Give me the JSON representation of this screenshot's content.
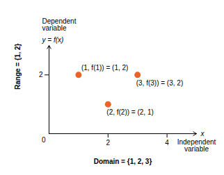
{
  "chart_data": {
    "type": "scatter",
    "x": [
      1,
      2,
      3
    ],
    "values": [
      2,
      1,
      2
    ],
    "color": "#E8622A",
    "xlim": [
      0,
      5.0
    ],
    "ylim": [
      0,
      3.0
    ],
    "xticks": [
      2,
      4
    ],
    "yticks": [
      2
    ],
    "xlabel": "x",
    "xlabel_note": "Independent\nvariable",
    "ylabel": "y = f(x)",
    "ylabel_note": "Dependent\nvariable",
    "domain_label": "Domain = {1, 2, 3}",
    "range_label": "Range = {1, 2}",
    "origin_label": "0",
    "annotations": [
      {
        "text": "(1, f(1)) = (1, 2)",
        "x": 1,
        "y": 2
      },
      {
        "text": "(3, f(3)) = (3, 2)",
        "x": 3,
        "y": 2
      },
      {
        "text": "(2, f(2)) = (2, 1)",
        "x": 2,
        "y": 1
      }
    ]
  }
}
